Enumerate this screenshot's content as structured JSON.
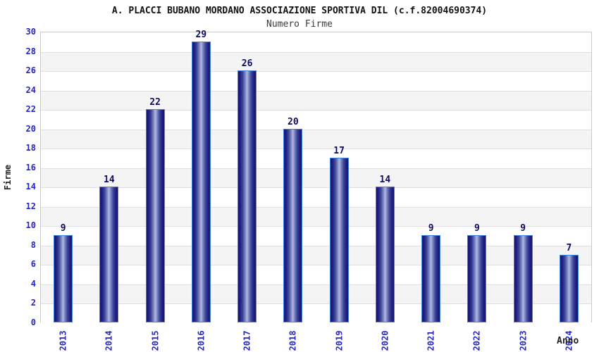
{
  "chart_data": {
    "type": "bar",
    "title": "A. PLACCI BUBANO MORDANO ASSOCIAZIONE SPORTIVA DIL (c.f.82004690374)",
    "subtitle": "Numero Firme",
    "xlabel": "Anno",
    "ylabel": "Firme",
    "categories": [
      "2013",
      "2014",
      "2015",
      "2016",
      "2017",
      "2018",
      "2019",
      "2020",
      "2021",
      "2022",
      "2023",
      "2024"
    ],
    "values": [
      9,
      14,
      22,
      29,
      26,
      20,
      17,
      14,
      9,
      9,
      9,
      7
    ],
    "ylim": [
      0,
      30
    ],
    "ytick_step": 2,
    "grid": true,
    "legend": false,
    "colors": {
      "axis_tick_blue": "#2424cc",
      "value_label_navy": "#0d0d62",
      "bar_border_blue": "#4585e2",
      "bar_edge_dark": "#16166e",
      "bar_center_light": "#a9b1dd",
      "band_gray": "#f4f4f4",
      "band_white": "#ffffff",
      "grid_line": "#e0e0e0",
      "plot_border": "#c9c9c9",
      "title_color": "#111111",
      "subtitle_color": "#3a3a3a"
    }
  }
}
